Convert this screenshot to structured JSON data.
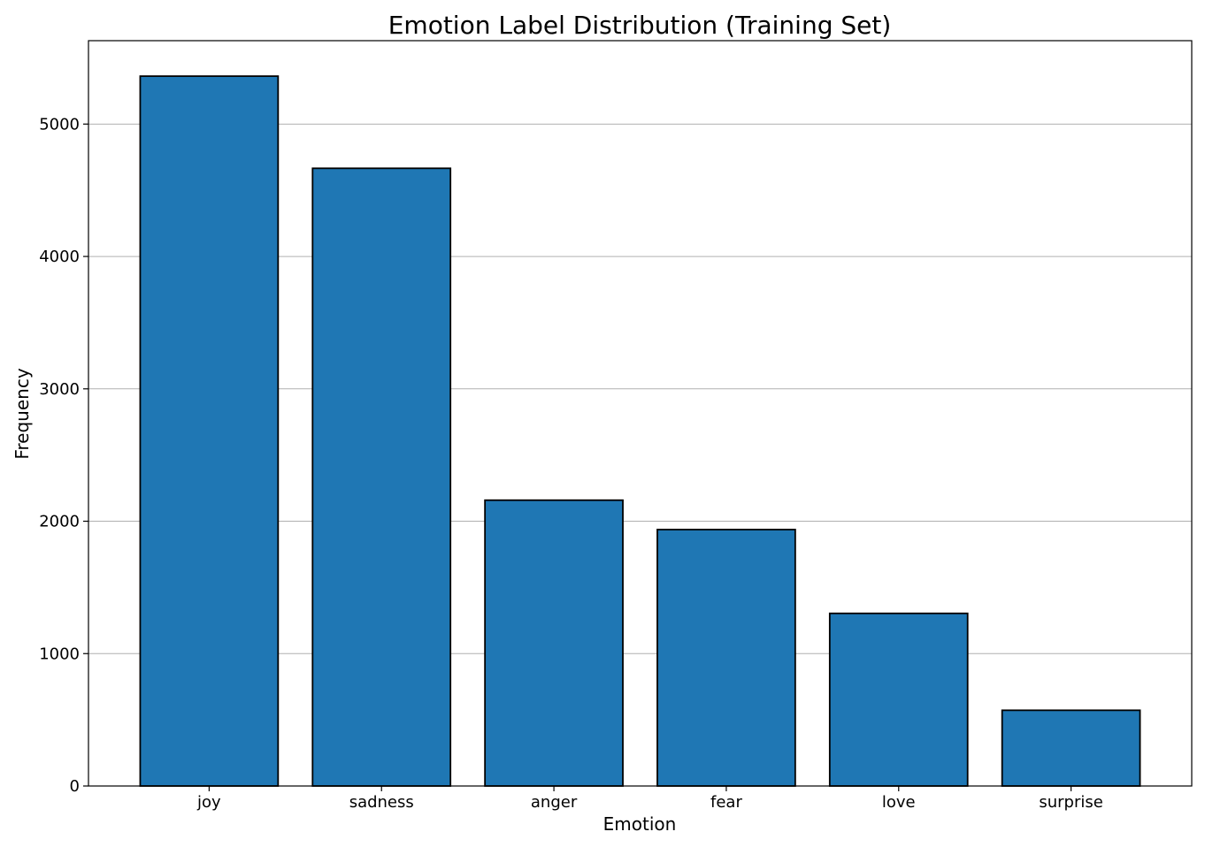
{
  "chart_data": {
    "type": "bar",
    "title": "Emotion Label Distribution (Training Set)",
    "xlabel": "Emotion",
    "ylabel": "Frequency",
    "categories": [
      "joy",
      "sadness",
      "anger",
      "fear",
      "love",
      "surprise"
    ],
    "values": [
      5362,
      4666,
      2159,
      1937,
      1304,
      572
    ],
    "ylim": [
      0,
      5630
    ],
    "yticks": [
      0,
      1000,
      2000,
      3000,
      4000,
      5000
    ],
    "grid": "y-axis",
    "legend": "none",
    "bar_color": "#1f77b4",
    "bar_edge_color": "#000000",
    "grid_color": "#b0b0b0"
  }
}
